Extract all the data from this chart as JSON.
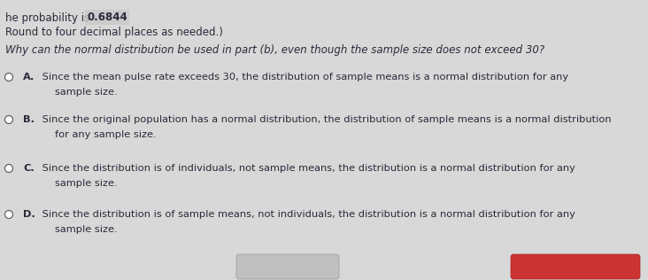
{
  "background_color": "#d8d8d8",
  "top_line1_prefix": "he probability is  ",
  "top_line1_bold": "0.6844",
  "top_line2": "Round to four decimal places as needed.)",
  "question": "Why can the normal distribution be used in part (b), even though the sample size does not exceed 30?",
  "options": [
    {
      "label": "A.",
      "line1": " Since the mean pulse rate exceeds 30, the distribution of sample means is a normal distribution for any",
      "line2": "sample size."
    },
    {
      "label": "B.",
      "line1": " Since the original population has a normal distribution, the distribution of sample means is a normal distribution",
      "line2": "for any sample size."
    },
    {
      "label": "C.",
      "line1": " Since the distribution is of individuals, not sample means, the distribution is a normal distribution for any",
      "line2": "sample size."
    },
    {
      "label": "D.",
      "line1": " Since the distribution is of sample means, not individuals, the distribution is a normal distribution for any",
      "line2": "sample size."
    }
  ],
  "font_size_top": 8.5,
  "font_size_question": 8.5,
  "font_size_option": 8.2,
  "text_color": "#2a2a3a",
  "bold_box_color": "#c8c8c8"
}
